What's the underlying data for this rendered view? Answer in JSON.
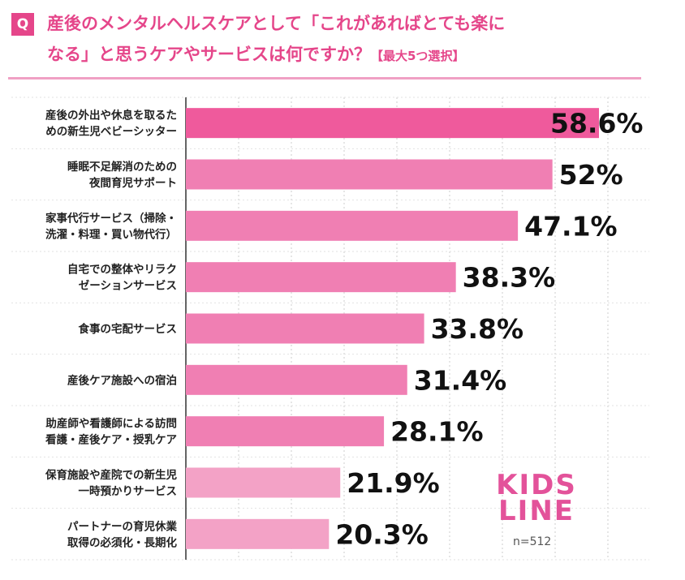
{
  "header": {
    "q_badge": "Q",
    "title_line1": "産後のメンタルヘルスケアとして「これがあればとても楽に",
    "title_line2": "なる」と思うケアやサービスは何ですか？",
    "title_note": "【最大5つ選択】"
  },
  "colors": {
    "accent": "#e5468a",
    "bar_top": "#ef5a9c",
    "bar": "#f07fb3",
    "bar_light": "#f3a2c6",
    "grid": "#cccccc"
  },
  "footer": {
    "logo_line1": "KIDS",
    "logo_line2": "LINE",
    "sample_size": "n=512"
  },
  "chart_data": {
    "type": "bar",
    "orientation": "horizontal",
    "categories": [
      [
        "産後の外出や休息を取るた",
        "めの新生児ベビーシッター"
      ],
      [
        "睡眠不足解消のための",
        "夜間育児サポート"
      ],
      [
        "家事代行サービス（掃除・",
        "洗濯・料理・買い物代行）"
      ],
      [
        "自宅での整体やリラク",
        "ゼーションサービス"
      ],
      [
        "食事の宅配サービス"
      ],
      [
        "産後ケア施設への宿泊"
      ],
      [
        "助産師や看護師による訪問",
        "看護・産後ケア・授乳ケア"
      ],
      [
        "保育施設や産院での新生児",
        "一時預かりサービス"
      ],
      [
        "パートナーの育児休業",
        "取得の必須化・長期化"
      ]
    ],
    "values": [
      58.6,
      52,
      47.1,
      38.3,
      33.8,
      31.4,
      28.1,
      21.9,
      20.3
    ],
    "value_labels": [
      "58.6%",
      "52%",
      "47.1%",
      "38.3%",
      "33.8%",
      "31.4%",
      "28.1%",
      "21.9%",
      "20.3%"
    ],
    "xlim": [
      0,
      58.6
    ],
    "grid": true
  }
}
